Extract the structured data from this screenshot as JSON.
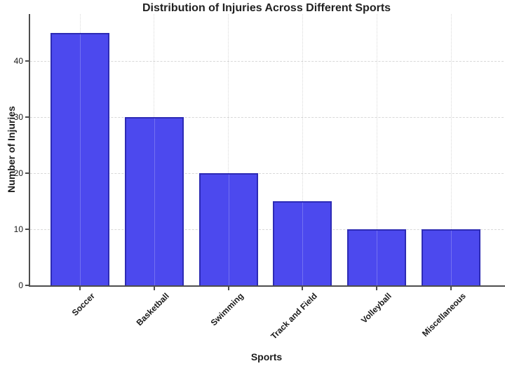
{
  "chart_data": {
    "type": "bar",
    "title": "Distribution of Injuries Across Different Sports",
    "xlabel": "Sports",
    "ylabel": "Number of Injuries",
    "categories": [
      "Soccer",
      "Basketball",
      "Swimming",
      "Track and Field",
      "Volleyball",
      "Miscellaneous"
    ],
    "values": [
      45,
      30,
      20,
      15,
      10,
      10
    ],
    "yticks": [
      0,
      10,
      20,
      30,
      40
    ],
    "ylim": [
      0,
      48.4
    ],
    "grid": true,
    "legend_position": "none",
    "colors": {
      "bar_fill": "#4c49ee",
      "bar_edge": "#2d2bb5",
      "axis": "#4d4d4d",
      "gridline": "#d8d8d8",
      "text": "#1c1c1c",
      "background": "#ffffff"
    }
  }
}
